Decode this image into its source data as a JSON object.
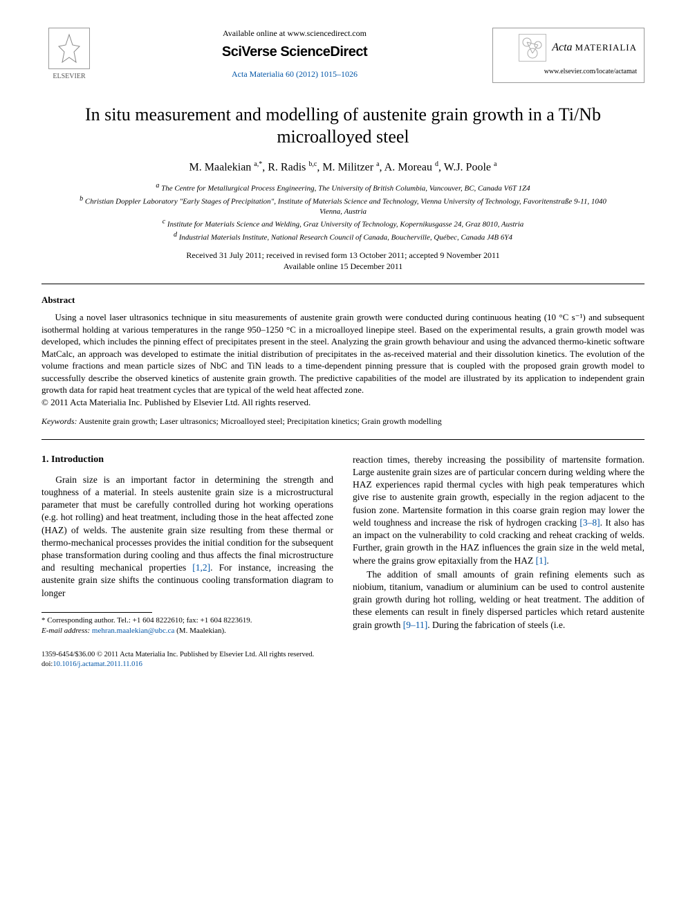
{
  "header": {
    "elsevier": "ELSEVIER",
    "available_online": "Available online at www.sciencedirect.com",
    "sciverse": "SciVerse ScienceDirect",
    "journal_ref": "Acta Materialia 60 (2012) 1015–1026",
    "journal_name_italic": "Acta",
    "journal_name_small": "MATERIALIA",
    "journal_url": "www.elsevier.com/locate/actamat"
  },
  "title": "In situ measurement and modelling of austenite grain growth in a Ti/Nb microalloyed steel",
  "authors_html": "M. Maalekian <span class='sup'>a,*</span>, R. Radis <span class='sup'>b,c</span>, M. Militzer <span class='sup'>a</span>, A. Moreau <span class='sup'>d</span>, W.J. Poole <span class='sup'>a</span>",
  "affiliations": {
    "a": "The Centre for Metallurgical Process Engineering, The University of British Columbia, Vancouver, BC, Canada V6T 1Z4",
    "b": "Christian Doppler Laboratory \"Early Stages of Precipitation\", Institute of Materials Science and Technology, Vienna University of Technology, Favoritenstraße 9-11, 1040 Vienna, Austria",
    "c": "Institute for Materials Science and Welding, Graz University of Technology, Kopernikusgasse 24, Graz 8010, Austria",
    "d": "Industrial Materials Institute, National Research Council of Canada, Boucherville, Québec, Canada J4B 6Y4"
  },
  "dates": {
    "received": "Received 31 July 2011; received in revised form 13 October 2011; accepted 9 November 2011",
    "online": "Available online 15 December 2011"
  },
  "abstract": {
    "heading": "Abstract",
    "body": "Using a novel laser ultrasonics technique in situ measurements of austenite grain growth were conducted during continuous heating (10 °C s⁻¹) and subsequent isothermal holding at various temperatures in the range 950–1250 °C in a microalloyed linepipe steel. Based on the experimental results, a grain growth model was developed, which includes the pinning effect of precipitates present in the steel. Analyzing the grain growth behaviour and using the advanced thermo-kinetic software MatCalc, an approach was developed to estimate the initial distribution of precipitates in the as-received material and their dissolution kinetics. The evolution of the volume fractions and mean particle sizes of NbC and TiN leads to a time-dependent pinning pressure that is coupled with the proposed grain growth model to successfully describe the observed kinetics of austenite grain growth. The predictive capabilities of the model are illustrated by its application to independent grain growth data for rapid heat treatment cycles that are typical of the weld heat affected zone.",
    "copyright": "© 2011 Acta Materialia Inc. Published by Elsevier Ltd. All rights reserved."
  },
  "keywords": {
    "label": "Keywords:",
    "text": "Austenite grain growth; Laser ultrasonics; Microalloyed steel; Precipitation kinetics; Grain growth modelling"
  },
  "section1": {
    "heading": "1. Introduction",
    "col1_p1": "Grain size is an important factor in determining the strength and toughness of a material. In steels austenite grain size is a microstructural parameter that must be carefully controlled during hot working operations (e.g. hot rolling) and heat treatment, including those in the heat affected zone (HAZ) of welds. The austenite grain size resulting from these thermal or thermo-mechanical processes provides the initial condition for the subsequent phase transformation during cooling and thus affects the final microstructure and resulting mechanical properties ",
    "col1_cite1": "[1,2]",
    "col1_p1b": ". For instance, increasing the austenite grain size shifts the continuous cooling transformation diagram to longer",
    "col2_p1": "reaction times, thereby increasing the possibility of martensite formation. Large austenite grain sizes are of particular concern during welding where the HAZ experiences rapid thermal cycles with high peak temperatures which give rise to austenite grain growth, especially in the region adjacent to the fusion zone. Martensite formation in this coarse grain region may lower the weld toughness and increase the risk of hydrogen cracking ",
    "col2_cite1": "[3–8]",
    "col2_p1b": ". It also has an impact on the vulnerability to cold cracking and reheat cracking of welds. Further, grain growth in the HAZ influences the grain size in the weld metal, where the grains grow epitaxially from the HAZ ",
    "col2_cite2": "[1]",
    "col2_p1c": ".",
    "col2_p2": "The addition of small amounts of grain refining elements such as niobium, titanium, vanadium or aluminium can be used to control austenite grain growth during hot rolling, welding or heat treatment. The addition of these elements can result in finely dispersed particles which retard austenite grain growth ",
    "col2_cite3": "[9–11]",
    "col2_p2b": ". During the fabrication of steels (i.e."
  },
  "footnote": {
    "corr": "* Corresponding author. Tel.: +1 604 8222610; fax: +1 604 8223619.",
    "email_label": "E-mail address:",
    "email": "mehran.maalekian@ubc.ca",
    "email_tail": " (M. Maalekian)."
  },
  "footer": {
    "line1": "1359-6454/$36.00 © 2011 Acta Materialia Inc. Published by Elsevier Ltd. All rights reserved.",
    "doi_label": "doi:",
    "doi": "10.1016/j.actamat.2011.11.016"
  },
  "colors": {
    "link": "#0054a6",
    "text": "#000000",
    "bg": "#ffffff"
  }
}
